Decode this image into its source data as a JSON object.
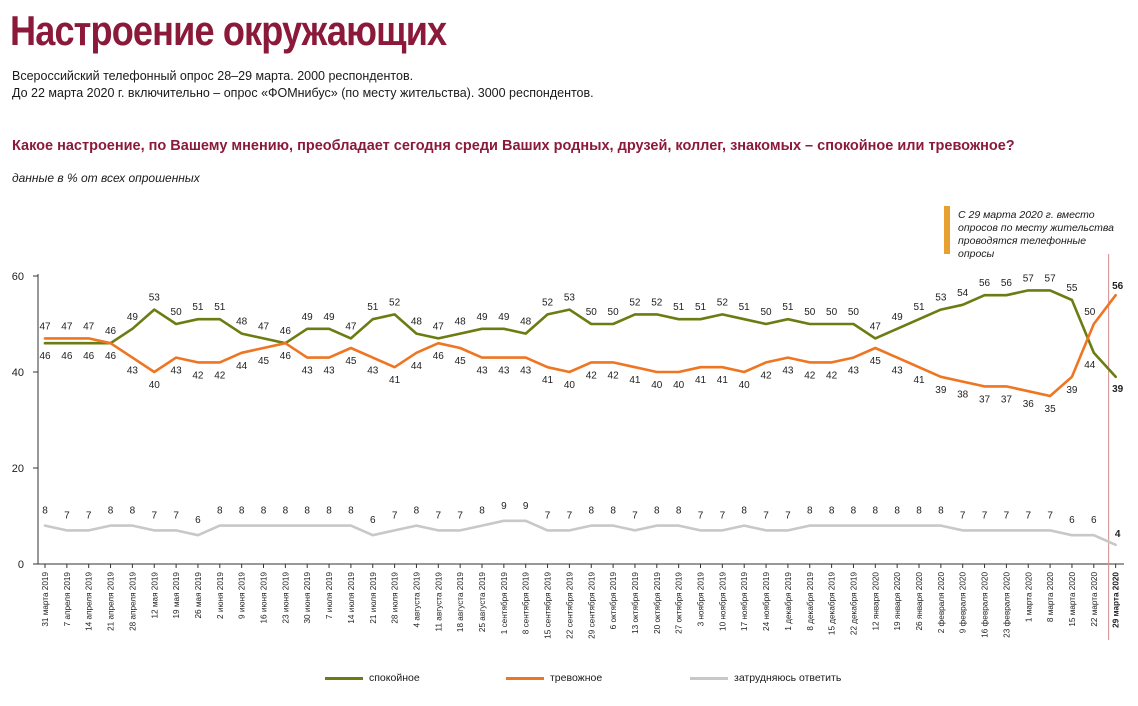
{
  "header": {
    "title": "Настроение окружающих",
    "line1": "Всероссийский телефонный опрос 28–29 марта. 2000 респондентов.",
    "line2": "До 22 марта 2020 г. включительно – опрос «ФОМнибус» (по месту жительства). 3000 респондентов.",
    "question": "Какое настроение, по Вашему мнению, преобладает сегодня среди Ваших родных, друзей, коллег, знакомых – спокойное или тревожное?",
    "units": "данные в % от всех опрошенных"
  },
  "note": "С 29 марта 2020 г. вместо опросов по месту жительства проводятся телефонные опросы",
  "colors": {
    "calm": "#6b7d12",
    "anxious": "#ee7623",
    "hard": "#c8c8c8",
    "accent": "#8b1a3a",
    "note_bar": "#e8a030"
  },
  "chart_data": {
    "type": "line",
    "ylim": [
      0,
      60
    ],
    "yticks": [
      0,
      20,
      40,
      60
    ],
    "categories": [
      "31 марта 2019",
      "7 апреля 2019",
      "14 апреля 2019",
      "21 апреля 2019",
      "28 апреля 2019",
      "12 мая 2019",
      "19 мая 2019",
      "26 мая 2019",
      "2 июня 2019",
      "9 июня 2019",
      "16 июня 2019",
      "23 июня 2019",
      "30 июня 2019",
      "7 июля 2019",
      "14 июля 2019",
      "21 июля 2019",
      "28 июля 2019",
      "4 августа 2019",
      "11 августа 2019",
      "18 августа 2019",
      "25 августа 2019",
      "1 сентября 2019",
      "8 сентября 2019",
      "15 сентября 2019",
      "22 сентября 2019",
      "29 сентября 2019",
      "6 октября 2019",
      "13 октября 2019",
      "20 октября 2019",
      "27 октября 2019",
      "3 ноября 2019",
      "10 ноября 2019",
      "17 ноября 2019",
      "24 ноября 2019",
      "1 декабря 2019",
      "8 декабря 2019",
      "15 декабря 2019",
      "22 декабря 2019",
      "12 января 2020",
      "19 января 2020",
      "26 января 2020",
      "2 февраля 2020",
      "9 февраля 2020",
      "16 февраля 2020",
      "23 февраля 2020",
      "1 марта 2020",
      "8 марта 2020",
      "15 марта 2020",
      "22 марта 2020",
      "29 марта 2020"
    ],
    "series": [
      {
        "name": "спокойное",
        "values": [
          46,
          46,
          46,
          46,
          49,
          53,
          50,
          51,
          51,
          48,
          47,
          46,
          49,
          49,
          47,
          51,
          52,
          48,
          47,
          48,
          49,
          49,
          48,
          52,
          53,
          50,
          50,
          52,
          52,
          51,
          51,
          52,
          51,
          50,
          51,
          50,
          50,
          50,
          47,
          49,
          51,
          53,
          54,
          56,
          56,
          57,
          57,
          55,
          44,
          39
        ]
      },
      {
        "name": "тревожное",
        "values": [
          47,
          47,
          47,
          46,
          43,
          40,
          43,
          42,
          42,
          44,
          45,
          46,
          43,
          43,
          45,
          43,
          41,
          44,
          46,
          45,
          43,
          43,
          43,
          41,
          40,
          42,
          42,
          41,
          40,
          40,
          41,
          41,
          40,
          42,
          43,
          42,
          42,
          43,
          45,
          43,
          41,
          39,
          38,
          37,
          37,
          36,
          35,
          39,
          50,
          56
        ]
      },
      {
        "name": "затрудняюсь ответить",
        "values": [
          8,
          7,
          7,
          8,
          8,
          7,
          7,
          6,
          8,
          8,
          8,
          8,
          8,
          8,
          8,
          6,
          7,
          8,
          7,
          7,
          8,
          9,
          9,
          7,
          7,
          8,
          8,
          7,
          8,
          8,
          7,
          7,
          8,
          7,
          7,
          8,
          8,
          8,
          8,
          8,
          8,
          8,
          7,
          7,
          7,
          7,
          7,
          6,
          6,
          4
        ]
      }
    ]
  }
}
